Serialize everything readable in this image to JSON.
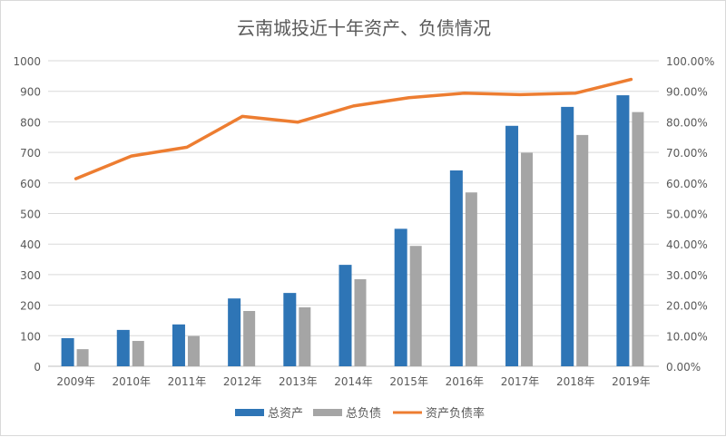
{
  "chart_data": {
    "type": "bar+line",
    "title": "云南城投近十年资产、负债情况",
    "categories": [
      "2009年",
      "2010年",
      "2011年",
      "2012年",
      "2013年",
      "2014年",
      "2015年",
      "2016年",
      "2017年",
      "2018年",
      "2019年"
    ],
    "series": [
      {
        "name": "总资产",
        "type": "bar",
        "axis": "left",
        "color": "#2E75B6",
        "values": [
          92,
          119,
          137,
          222,
          240,
          332,
          450,
          641,
          787,
          849,
          887
        ]
      },
      {
        "name": "总负债",
        "type": "bar",
        "axis": "left",
        "color": "#A5A5A5",
        "values": [
          56,
          83,
          99,
          181,
          193,
          285,
          394,
          569,
          699,
          757,
          832
        ]
      },
      {
        "name": "资产负债率",
        "type": "line",
        "axis": "right",
        "color": "#ED7D31",
        "values": [
          61.4,
          68.8,
          71.7,
          81.8,
          79.9,
          85.2,
          87.9,
          89.4,
          88.9,
          89.4,
          93.9
        ]
      }
    ],
    "left_axis": {
      "ylim": [
        0,
        1000
      ],
      "ticks": [
        "0",
        "100",
        "200",
        "300",
        "400",
        "500",
        "600",
        "700",
        "800",
        "900",
        "1000"
      ]
    },
    "right_axis": {
      "ylim": [
        0,
        100
      ],
      "ticks": [
        "0.00%",
        "10.00%",
        "20.00%",
        "30.00%",
        "40.00%",
        "50.00%",
        "60.00%",
        "70.00%",
        "80.00%",
        "90.00%",
        "100.00%"
      ]
    },
    "grid": true,
    "legend": "bottom"
  }
}
